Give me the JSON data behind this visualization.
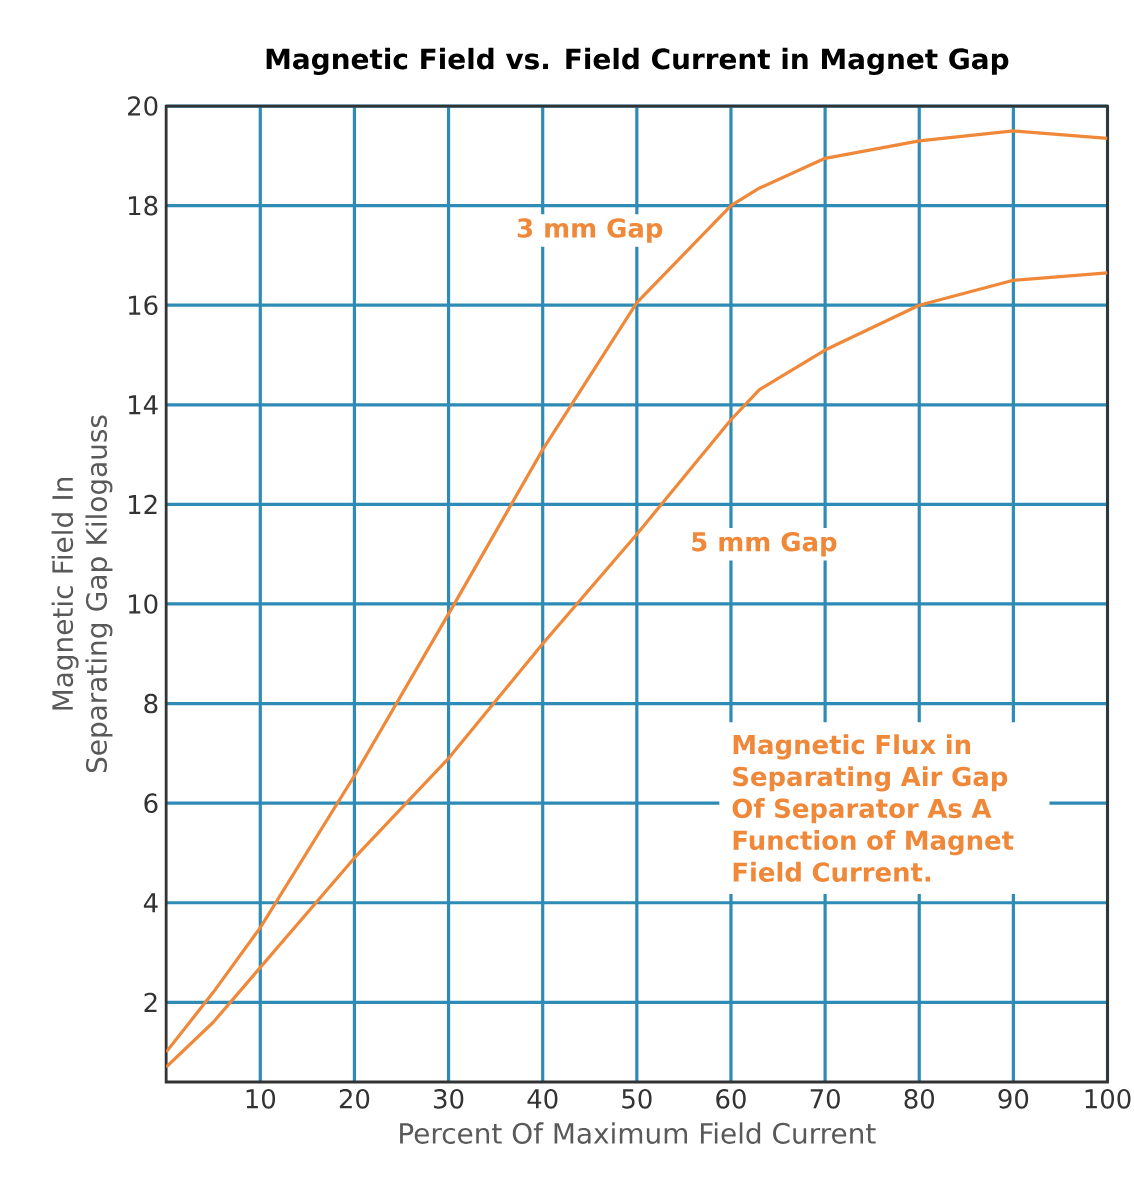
{
  "chart_data": {
    "type": "line",
    "title": "Magnetic Field vs. Field Current in Magnet Gap",
    "xlabel": "Percent Of Maximum Field Current",
    "ylabel": "Magnetic Field In Separating Gap Kilogauss",
    "x": [
      0,
      5,
      10,
      20,
      30,
      40,
      50,
      60,
      63,
      70,
      80,
      90,
      100
    ],
    "series": [
      {
        "name": "3 mm Gap",
        "color": "#f0883a",
        "values": [
          1.0,
          2.2,
          3.5,
          6.55,
          9.8,
          13.1,
          16.05,
          18.0,
          18.35,
          18.95,
          19.3,
          19.5,
          19.35
        ]
      },
      {
        "name": "5 mm Gap",
        "color": "#f0883a",
        "values": [
          0.7,
          1.6,
          2.7,
          4.9,
          6.9,
          9.2,
          11.4,
          13.7,
          14.3,
          15.1,
          16.0,
          16.5,
          16.65
        ]
      }
    ],
    "xlim": [
      0,
      100
    ],
    "ylim": [
      0.4,
      20
    ],
    "xticks": [
      10,
      20,
      30,
      40,
      50,
      60,
      70,
      80,
      90,
      100
    ],
    "yticks": [
      2,
      4,
      6,
      8,
      10,
      12,
      14,
      16,
      18,
      20
    ],
    "grid": true,
    "marker": "none",
    "line_style": "solid",
    "annotations": [
      "Magnetic Flux in Separating Air Gap Of Separator As A Function of Magnet Field Current."
    ]
  }
}
